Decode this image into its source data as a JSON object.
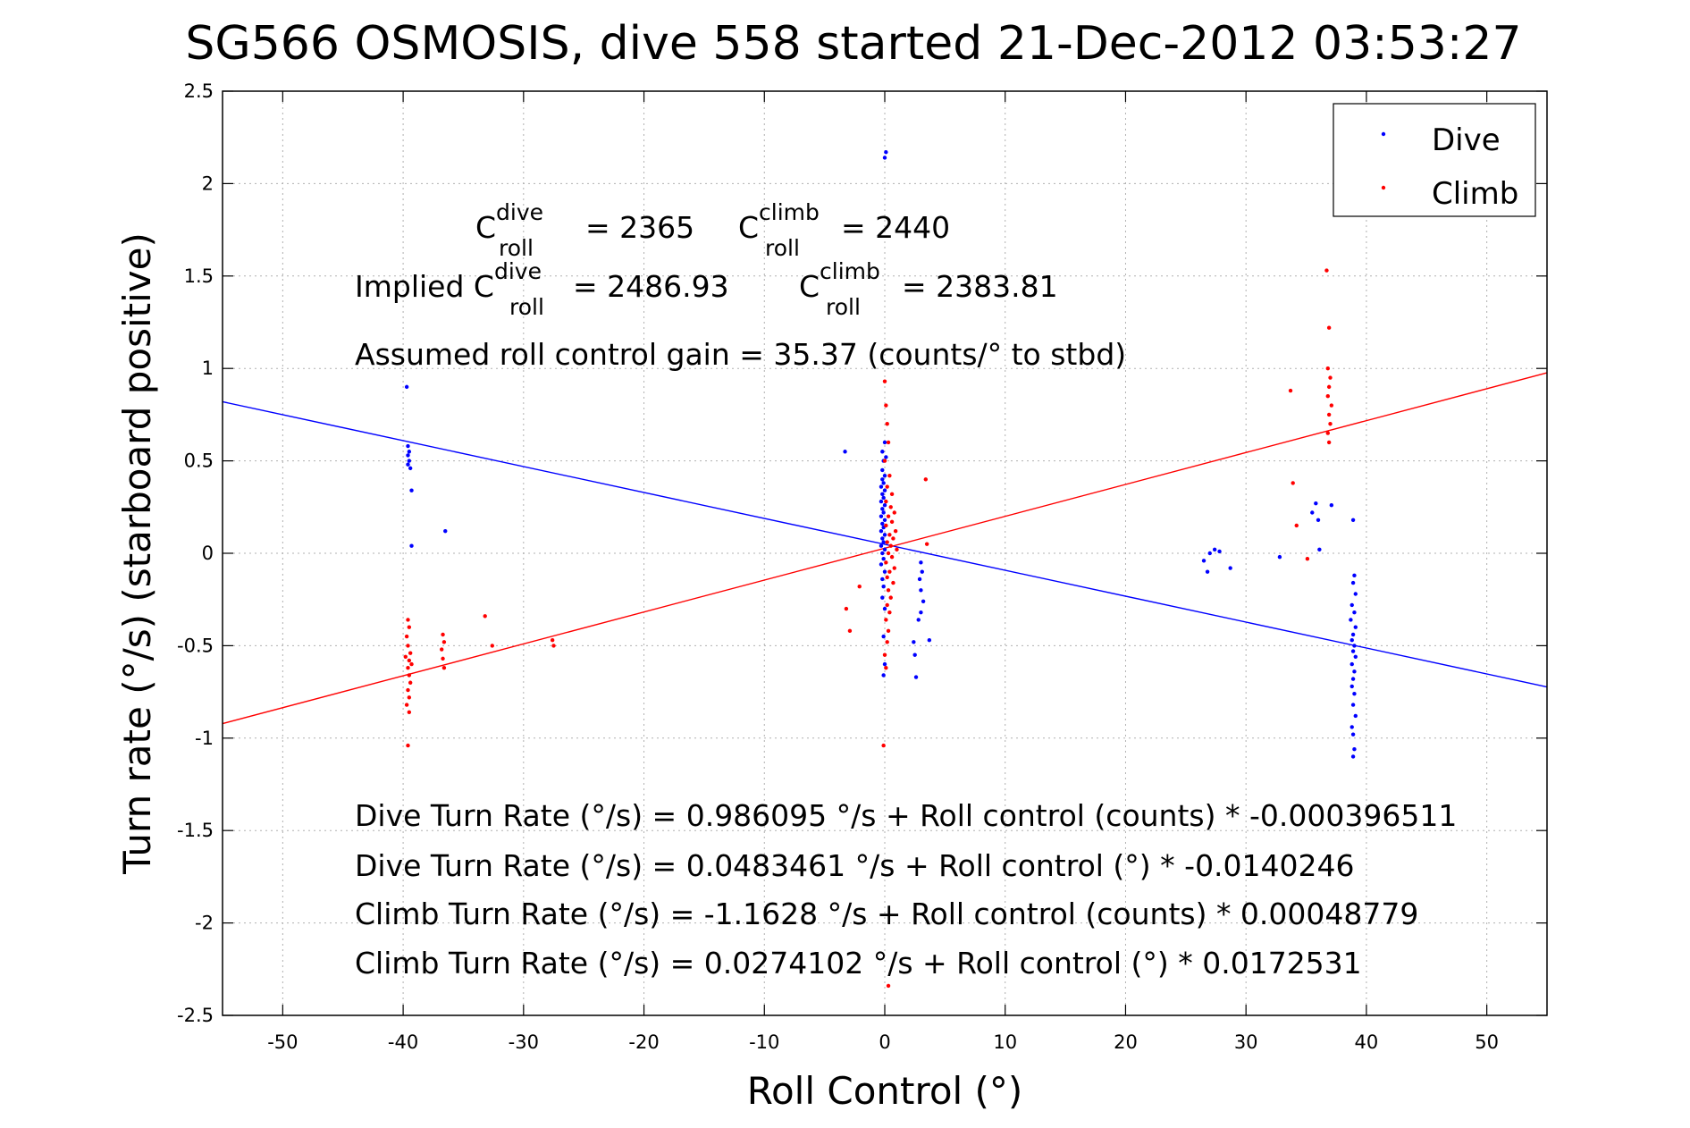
{
  "chart_data": {
    "type": "scatter",
    "title": "SG566 OSMOSIS, dive 558 started 21-Dec-2012 03:53:27",
    "xlabel": "Roll Control (°)",
    "ylabel": "Turn rate (°/s)  (starboard positive)",
    "xlim": [
      -55,
      55
    ],
    "ylim": [
      -2.5,
      2.5
    ],
    "xticks": [
      -50,
      -40,
      -30,
      -20,
      -10,
      0,
      10,
      20,
      30,
      40,
      50
    ],
    "yticks": [
      2.5,
      2,
      1.5,
      1,
      0.5,
      0,
      -0.5,
      -1,
      -1.5,
      -2,
      -2.5
    ],
    "xtick_labels": [
      "-50",
      "-40",
      "-30",
      "-20",
      "-10",
      "0",
      "10",
      "20",
      "30",
      "40",
      "50"
    ],
    "ytick_labels": [
      "2.5",
      "2",
      "1.5",
      "1",
      "0.5",
      "0",
      "-0.5",
      "-1",
      "-1.5",
      "-2",
      "-2.5"
    ],
    "grid": true,
    "legend_position": "top-right",
    "series": [
      {
        "name": "Dive",
        "color": "#0000ff",
        "points": [
          [
            -39.7,
            0.9
          ],
          [
            -39.6,
            0.58
          ],
          [
            -39.5,
            0.55
          ],
          [
            -39.6,
            0.53
          ],
          [
            -39.5,
            0.5
          ],
          [
            -39.6,
            0.48
          ],
          [
            -39.4,
            0.46
          ],
          [
            -39.3,
            0.34
          ],
          [
            -39.3,
            0.04
          ],
          [
            -36.5,
            0.12
          ],
          [
            -3.3,
            0.55
          ],
          [
            0.1,
            2.17
          ],
          [
            0.0,
            2.14
          ],
          [
            0.0,
            0.6
          ],
          [
            -0.2,
            0.55
          ],
          [
            0.1,
            0.52
          ],
          [
            -0.1,
            0.5
          ],
          [
            -0.2,
            0.45
          ],
          [
            0.0,
            0.42
          ],
          [
            -0.2,
            0.4
          ],
          [
            -0.1,
            0.38
          ],
          [
            -0.3,
            0.36
          ],
          [
            0.0,
            0.34
          ],
          [
            -0.2,
            0.32
          ],
          [
            -0.1,
            0.3
          ],
          [
            -0.3,
            0.28
          ],
          [
            0.0,
            0.26
          ],
          [
            -0.2,
            0.24
          ],
          [
            -0.1,
            0.22
          ],
          [
            -0.3,
            0.2
          ],
          [
            0.0,
            0.18
          ],
          [
            -0.2,
            0.16
          ],
          [
            -0.1,
            0.14
          ],
          [
            -0.3,
            0.12
          ],
          [
            0.0,
            0.1
          ],
          [
            -0.2,
            0.08
          ],
          [
            -0.1,
            0.06
          ],
          [
            -0.3,
            0.04
          ],
          [
            0.0,
            0.02
          ],
          [
            -0.2,
            0.0
          ],
          [
            -0.1,
            -0.03
          ],
          [
            -0.3,
            -0.06
          ],
          [
            0.0,
            -0.1
          ],
          [
            -0.2,
            -0.14
          ],
          [
            -0.1,
            -0.18
          ],
          [
            -0.2,
            -0.24
          ],
          [
            0.0,
            -0.3
          ],
          [
            -0.1,
            -0.45
          ],
          [
            0.0,
            -0.6
          ],
          [
            -0.1,
            -0.66
          ],
          [
            3.0,
            -0.05
          ],
          [
            3.1,
            -0.1
          ],
          [
            2.9,
            -0.14
          ],
          [
            3.0,
            -0.2
          ],
          [
            3.2,
            -0.26
          ],
          [
            3.0,
            -0.32
          ],
          [
            2.8,
            -0.36
          ],
          [
            2.4,
            -0.48
          ],
          [
            2.5,
            -0.55
          ],
          [
            2.6,
            -0.67
          ],
          [
            3.7,
            -0.47
          ],
          [
            26.5,
            -0.04
          ],
          [
            26.8,
            -0.1
          ],
          [
            27.0,
            0.0
          ],
          [
            27.4,
            0.02
          ],
          [
            27.8,
            0.01
          ],
          [
            28.7,
            -0.08
          ],
          [
            32.8,
            -0.02
          ],
          [
            35.5,
            0.22
          ],
          [
            35.8,
            0.27
          ],
          [
            36.0,
            0.18
          ],
          [
            36.1,
            0.02
          ],
          [
            37.1,
            0.26
          ],
          [
            38.9,
            0.18
          ],
          [
            39.0,
            -0.12
          ],
          [
            38.9,
            -0.16
          ],
          [
            39.1,
            -0.22
          ],
          [
            38.8,
            -0.28
          ],
          [
            39.0,
            -0.32
          ],
          [
            38.7,
            -0.36
          ],
          [
            39.1,
            -0.4
          ],
          [
            38.9,
            -0.44
          ],
          [
            38.8,
            -0.47
          ],
          [
            39.0,
            -0.5
          ],
          [
            38.9,
            -0.53
          ],
          [
            39.1,
            -0.56
          ],
          [
            38.8,
            -0.6
          ],
          [
            39.0,
            -0.64
          ],
          [
            38.9,
            -0.68
          ],
          [
            38.8,
            -0.72
          ],
          [
            39.0,
            -0.76
          ],
          [
            38.9,
            -0.82
          ],
          [
            39.1,
            -0.88
          ],
          [
            38.8,
            -0.94
          ],
          [
            38.9,
            -0.98
          ],
          [
            39.0,
            -1.06
          ],
          [
            38.9,
            -1.1
          ]
        ]
      },
      {
        "name": "Climb",
        "color": "#ff0000",
        "points": [
          [
            -39.6,
            -0.36
          ],
          [
            -39.5,
            -0.4
          ],
          [
            -39.7,
            -0.45
          ],
          [
            -39.6,
            -0.5
          ],
          [
            -39.4,
            -0.54
          ],
          [
            -39.5,
            -0.58
          ],
          [
            -39.6,
            -0.62
          ],
          [
            -39.5,
            -0.66
          ],
          [
            -39.4,
            -0.7
          ],
          [
            -39.6,
            -0.74
          ],
          [
            -39.5,
            -0.78
          ],
          [
            -39.7,
            -0.82
          ],
          [
            -39.5,
            -0.86
          ],
          [
            -39.6,
            -1.04
          ],
          [
            -39.8,
            -0.56
          ],
          [
            -39.3,
            -0.6
          ],
          [
            -36.7,
            -0.44
          ],
          [
            -36.6,
            -0.48
          ],
          [
            -36.8,
            -0.52
          ],
          [
            -36.7,
            -0.57
          ],
          [
            -36.6,
            -0.62
          ],
          [
            -33.2,
            -0.34
          ],
          [
            -32.6,
            -0.5
          ],
          [
            -27.6,
            -0.47
          ],
          [
            -27.5,
            -0.5
          ],
          [
            -3.2,
            -0.3
          ],
          [
            -2.9,
            -0.42
          ],
          [
            -2.1,
            -0.18
          ],
          [
            0.0,
            0.93
          ],
          [
            0.1,
            0.8
          ],
          [
            0.2,
            0.7
          ],
          [
            0.3,
            0.6
          ],
          [
            0.0,
            0.5
          ],
          [
            0.4,
            0.42
          ],
          [
            0.2,
            0.36
          ],
          [
            0.6,
            0.32
          ],
          [
            0.1,
            0.28
          ],
          [
            0.5,
            0.25
          ],
          [
            0.8,
            0.22
          ],
          [
            0.3,
            0.2
          ],
          [
            0.6,
            0.17
          ],
          [
            0.1,
            0.15
          ],
          [
            0.9,
            0.12
          ],
          [
            0.4,
            0.1
          ],
          [
            0.7,
            0.08
          ],
          [
            0.2,
            0.06
          ],
          [
            0.5,
            0.04
          ],
          [
            1.0,
            0.02
          ],
          [
            0.3,
            0.0
          ],
          [
            0.6,
            -0.02
          ],
          [
            0.1,
            -0.05
          ],
          [
            0.8,
            -0.08
          ],
          [
            0.4,
            -0.1
          ],
          [
            0.2,
            -0.13
          ],
          [
            0.7,
            -0.16
          ],
          [
            0.3,
            -0.2
          ],
          [
            0.5,
            -0.24
          ],
          [
            0.2,
            -0.28
          ],
          [
            0.4,
            -0.32
          ],
          [
            0.1,
            -0.36
          ],
          [
            0.3,
            -0.42
          ],
          [
            0.2,
            -0.48
          ],
          [
            0.0,
            -0.55
          ],
          [
            0.1,
            -0.62
          ],
          [
            -0.1,
            -1.04
          ],
          [
            0.3,
            -2.34
          ],
          [
            3.4,
            0.4
          ],
          [
            3.5,
            0.05
          ],
          [
            33.7,
            0.88
          ],
          [
            33.9,
            0.38
          ],
          [
            34.2,
            0.15
          ],
          [
            35.1,
            -0.03
          ],
          [
            36.7,
            1.53
          ],
          [
            36.9,
            1.22
          ],
          [
            36.8,
            1.0
          ],
          [
            37.0,
            0.95
          ],
          [
            36.9,
            0.9
          ],
          [
            36.8,
            0.85
          ],
          [
            37.1,
            0.8
          ],
          [
            36.9,
            0.75
          ],
          [
            37.0,
            0.7
          ],
          [
            36.8,
            0.65
          ],
          [
            36.9,
            0.6
          ]
        ]
      }
    ],
    "fit_lines": [
      {
        "series": "Dive",
        "color": "#0000ff",
        "intercept": 0.0483461,
        "slope": -0.0140246
      },
      {
        "series": "Climb",
        "color": "#ff0000",
        "intercept": 0.0274102,
        "slope": 0.0172531
      }
    ],
    "annotations": {
      "c_roll_dive": {
        "symbol": "C",
        "sup": "dive",
        "sub": "roll",
        "value": "= 2365"
      },
      "c_roll_climb": {
        "symbol": "C",
        "sup": "climb",
        "sub": "roll",
        "value": "= 2440"
      },
      "implied_prefix": "Implied C",
      "implied_dive": {
        "sup": "dive",
        "sub": "roll",
        "value": "= 2486.93"
      },
      "implied_climb": {
        "symbol": "C",
        "sup": "climb",
        "sub": "roll",
        "value": "= 2383.81"
      },
      "gain": "Assumed roll control gain = 35.37 (counts/° to stbd)",
      "equations": [
        "Dive Turn Rate (°/s) = 0.986095 °/s + Roll control (counts) * -0.000396511",
        "Dive Turn Rate (°/s) = 0.0483461 °/s + Roll control (°) * -0.0140246",
        "Climb Turn Rate (°/s) = -1.1628 °/s + Roll control (counts) * 0.00048779",
        "Climb Turn Rate (°/s) = 0.0274102 °/s + Roll control (°) * 0.0172531"
      ]
    }
  }
}
